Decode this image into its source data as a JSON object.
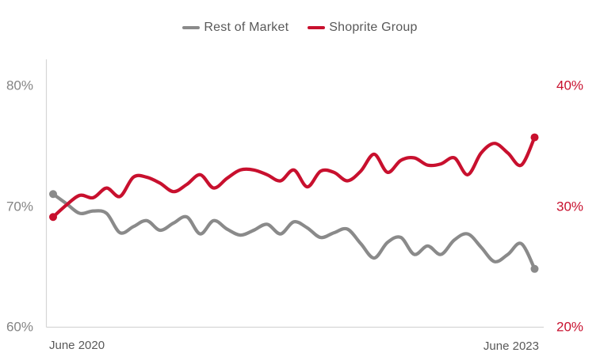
{
  "legend": {
    "items": [
      {
        "label": "Rest of Market",
        "color": "#8a8a8a"
      },
      {
        "label": "Shoprite Group",
        "color": "#c8102e"
      }
    ]
  },
  "x_axis": {
    "start_label": "June 2020",
    "end_label": "June 2023"
  },
  "chart_data": {
    "type": "line",
    "title": "",
    "x": {
      "start": "June 2020",
      "end": "June 2023",
      "interval": "monthly",
      "points": 37,
      "visible_labels": [
        "June 2020",
        "June 2023"
      ]
    },
    "left_axis": {
      "ticks": [
        "80%",
        "70%",
        "60%"
      ],
      "tick_values": [
        80,
        70,
        60
      ],
      "range": [
        60,
        80
      ],
      "color": "#848484",
      "applies_to": "Rest of Market"
    },
    "right_axis": {
      "ticks": [
        "40%",
        "30%",
        "20%"
      ],
      "tick_values": [
        40,
        30,
        20
      ],
      "range": [
        20,
        40
      ],
      "color": "#c8102e",
      "applies_to": "Shoprite Group"
    },
    "grid": "off",
    "legend_position": "top-center",
    "series": [
      {
        "name": "Rest of Market",
        "axis": "left",
        "color": "#8a8a8a",
        "endpoint_dots": true,
        "values": [
          71.0,
          70.2,
          69.4,
          69.6,
          69.4,
          67.8,
          68.3,
          68.8,
          68.0,
          68.6,
          69.1,
          67.7,
          68.8,
          68.1,
          67.6,
          68.0,
          68.5,
          67.7,
          68.7,
          68.2,
          67.4,
          67.8,
          68.1,
          66.9,
          65.7,
          67.0,
          67.4,
          66.0,
          66.7,
          66.0,
          67.2,
          67.7,
          66.6,
          65.4,
          66.0,
          66.9,
          64.8
        ]
      },
      {
        "name": "Shoprite Group",
        "axis": "right",
        "color": "#c8102e",
        "endpoint_dots": true,
        "values": [
          29.1,
          30.1,
          30.9,
          30.7,
          31.5,
          30.8,
          32.4,
          32.4,
          31.9,
          31.2,
          31.8,
          32.6,
          31.5,
          32.3,
          33.0,
          33.0,
          32.6,
          32.1,
          33.0,
          31.6,
          32.9,
          32.8,
          32.1,
          32.9,
          34.3,
          32.8,
          33.8,
          34.0,
          33.4,
          33.5,
          34.0,
          32.6,
          34.4,
          35.2,
          34.4,
          33.4,
          35.7
        ]
      }
    ],
    "axis_line_color": "#d6d6d6"
  }
}
